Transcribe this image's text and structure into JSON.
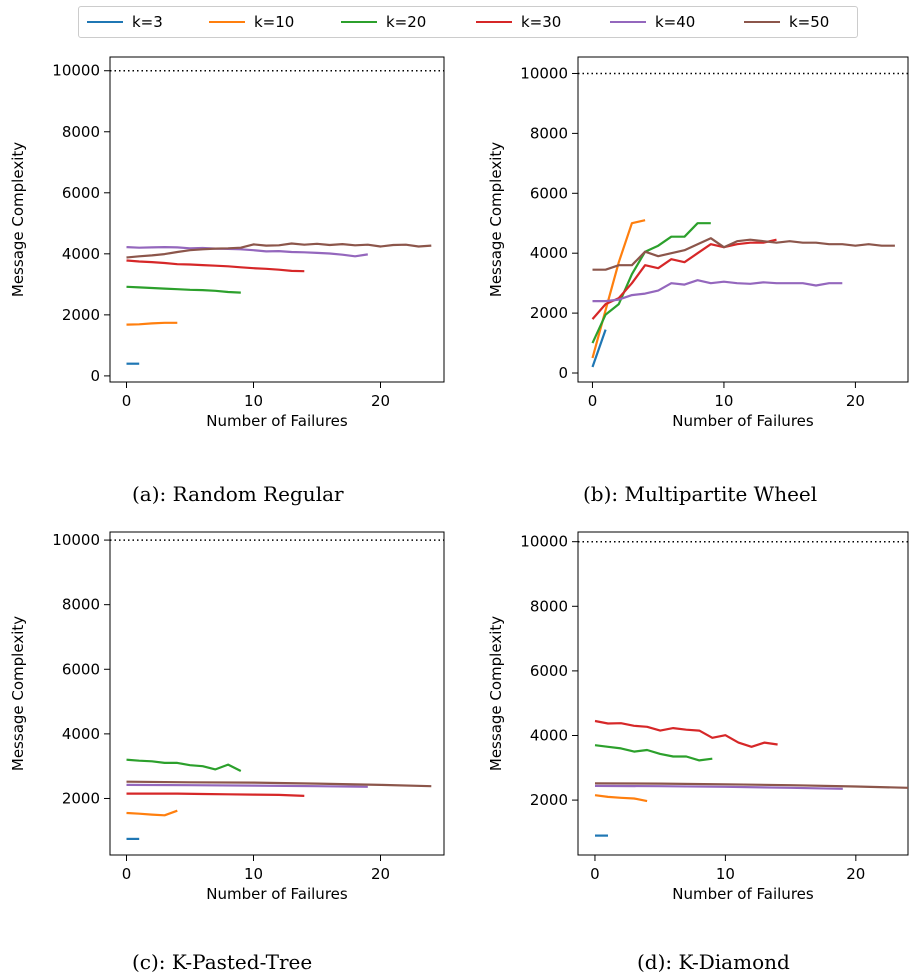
{
  "legend": {
    "placement": "top-center",
    "items": [
      {
        "label": "k=3",
        "color": "#1f77b4"
      },
      {
        "label": "k=10",
        "color": "#ff7f0e"
      },
      {
        "label": "k=20",
        "color": "#2ca02c"
      },
      {
        "label": "k=30",
        "color": "#d62728"
      },
      {
        "label": "k=40",
        "color": "#9467bd"
      },
      {
        "label": "k=50",
        "color": "#8c564b"
      }
    ]
  },
  "chart_data": [
    {
      "type": "line",
      "caption": "(a): Random Regular",
      "xlabel": "Number of Failures",
      "ylabel": "Message Complexity",
      "xlim": [
        -1.3,
        25.0
      ],
      "ylim": [
        -200,
        10450
      ],
      "xticks": [
        0,
        10,
        20
      ],
      "yticks": [
        0,
        2000,
        4000,
        6000,
        8000,
        10000
      ],
      "grid": false,
      "reference_line": {
        "y": 10000,
        "style": "dotted",
        "color": "#000000"
      },
      "series": [
        {
          "name": "k=3",
          "color": "#1f77b4",
          "x": [
            0,
            1
          ],
          "y": [
            400,
            400
          ]
        },
        {
          "name": "k=10",
          "color": "#ff7f0e",
          "x": [
            0,
            1,
            2,
            3,
            4
          ],
          "y": [
            1680,
            1690,
            1720,
            1740,
            1740
          ]
        },
        {
          "name": "k=20",
          "color": "#2ca02c",
          "x": [
            0,
            1,
            2,
            3,
            4,
            5,
            6,
            7,
            8,
            9
          ],
          "y": [
            2920,
            2900,
            2880,
            2860,
            2840,
            2820,
            2810,
            2790,
            2750,
            2730
          ]
        },
        {
          "name": "k=30",
          "color": "#d62728",
          "x": [
            0,
            1,
            2,
            3,
            4,
            5,
            6,
            7,
            8,
            9,
            10,
            11,
            12,
            13,
            14
          ],
          "y": [
            3780,
            3750,
            3730,
            3700,
            3660,
            3650,
            3630,
            3610,
            3590,
            3560,
            3530,
            3510,
            3480,
            3440,
            3430
          ]
        },
        {
          "name": "k=40",
          "color": "#9467bd",
          "x": [
            0,
            1,
            2,
            3,
            4,
            5,
            6,
            7,
            8,
            9,
            10,
            11,
            12,
            13,
            14,
            15,
            16,
            17,
            18,
            19
          ],
          "y": [
            4220,
            4200,
            4210,
            4220,
            4210,
            4180,
            4190,
            4170,
            4160,
            4150,
            4120,
            4080,
            4090,
            4060,
            4050,
            4030,
            4010,
            3970,
            3920,
            3980
          ]
        },
        {
          "name": "k=50",
          "color": "#8c564b",
          "x": [
            0,
            1,
            2,
            3,
            4,
            5,
            6,
            7,
            8,
            9,
            10,
            11,
            12,
            13,
            14,
            15,
            16,
            17,
            18,
            19,
            20,
            21,
            22,
            23,
            24
          ],
          "y": [
            3880,
            3920,
            3950,
            3990,
            4060,
            4120,
            4150,
            4170,
            4180,
            4200,
            4310,
            4270,
            4280,
            4340,
            4300,
            4330,
            4290,
            4320,
            4280,
            4300,
            4240,
            4290,
            4300,
            4240,
            4270
          ]
        }
      ]
    },
    {
      "type": "line",
      "caption": "(b): Multipartite Wheel",
      "xlabel": "Number of Failures",
      "ylabel": "Message Complexity",
      "xlim": [
        -1.1,
        24.0
      ],
      "ylim": [
        -300,
        10550
      ],
      "xticks": [
        0,
        10,
        20
      ],
      "yticks": [
        0,
        2000,
        4000,
        6000,
        8000,
        10000
      ],
      "grid": false,
      "reference_line": {
        "y": 10000,
        "style": "dotted",
        "color": "#000000"
      },
      "series": [
        {
          "name": "k=3",
          "color": "#1f77b4",
          "x": [
            0,
            1
          ],
          "y": [
            200,
            1450
          ]
        },
        {
          "name": "k=10",
          "color": "#ff7f0e",
          "x": [
            0,
            1,
            2,
            3,
            4
          ],
          "y": [
            500,
            2100,
            3700,
            5000,
            5100
          ]
        },
        {
          "name": "k=20",
          "color": "#2ca02c",
          "x": [
            0,
            1,
            2,
            3,
            4,
            5,
            6,
            7,
            8,
            9
          ],
          "y": [
            1000,
            1950,
            2300,
            3300,
            4050,
            4250,
            4550,
            4550,
            5000,
            5000
          ]
        },
        {
          "name": "k=30",
          "color": "#d62728",
          "x": [
            0,
            1,
            2,
            3,
            4,
            5,
            6,
            7,
            8,
            9,
            10,
            11,
            12,
            13,
            14
          ],
          "y": [
            1800,
            2300,
            2500,
            3000,
            3600,
            3500,
            3800,
            3700,
            4000,
            4300,
            4200,
            4300,
            4350,
            4350,
            4450
          ]
        },
        {
          "name": "k=40",
          "color": "#9467bd",
          "x": [
            0,
            1,
            2,
            3,
            4,
            5,
            6,
            7,
            8,
            9,
            10,
            11,
            12,
            13,
            14,
            15,
            16,
            17,
            18,
            19
          ],
          "y": [
            2400,
            2400,
            2450,
            2600,
            2650,
            2750,
            3000,
            2950,
            3100,
            3000,
            3050,
            3000,
            2980,
            3030,
            3000,
            3000,
            3000,
            2920,
            3000,
            3000
          ]
        },
        {
          "name": "k=50",
          "color": "#8c564b",
          "x": [
            0,
            1,
            2,
            3,
            4,
            5,
            6,
            7,
            8,
            9,
            10,
            11,
            12,
            13,
            14,
            15,
            16,
            17,
            18,
            19,
            20,
            21,
            22,
            23
          ],
          "y": [
            3450,
            3450,
            3600,
            3600,
            4050,
            3900,
            4000,
            4100,
            4300,
            4500,
            4200,
            4400,
            4450,
            4400,
            4350,
            4400,
            4350,
            4350,
            4300,
            4300,
            4250,
            4300,
            4250,
            4250
          ]
        }
      ]
    },
    {
      "type": "line",
      "caption": "(c): K-Pasted-Tree",
      "xlabel": "Number of Failures",
      "ylabel": "Message Complexity",
      "xlim": [
        -1.3,
        25.0
      ],
      "ylim": [
        250,
        10250
      ],
      "xticks": [
        0,
        10,
        20
      ],
      "yticks": [
        2000,
        4000,
        6000,
        8000,
        10000
      ],
      "grid": false,
      "reference_line": {
        "y": 10000,
        "style": "dotted",
        "color": "#000000"
      },
      "series": [
        {
          "name": "k=3",
          "color": "#1f77b4",
          "x": [
            0,
            1
          ],
          "y": [
            750,
            750
          ]
        },
        {
          "name": "k=10",
          "color": "#ff7f0e",
          "x": [
            0,
            1,
            2,
            3,
            4
          ],
          "y": [
            1550,
            1530,
            1500,
            1480,
            1620
          ]
        },
        {
          "name": "k=20",
          "color": "#2ca02c",
          "x": [
            0,
            1,
            2,
            3,
            4,
            5,
            6,
            7,
            8,
            9
          ],
          "y": [
            3200,
            3170,
            3150,
            3100,
            3100,
            3030,
            3000,
            2900,
            3050,
            2850
          ]
        },
        {
          "name": "k=30",
          "color": "#d62728",
          "x": [
            0,
            2,
            4,
            6,
            8,
            10,
            12,
            14
          ],
          "y": [
            2150,
            2150,
            2150,
            2140,
            2130,
            2120,
            2110,
            2080
          ]
        },
        {
          "name": "k=40",
          "color": "#9467bd",
          "x": [
            0,
            5,
            10,
            15,
            19
          ],
          "y": [
            2420,
            2410,
            2400,
            2380,
            2360
          ]
        },
        {
          "name": "k=50",
          "color": "#8c564b",
          "x": [
            0,
            5,
            10,
            15,
            20,
            24
          ],
          "y": [
            2520,
            2500,
            2490,
            2460,
            2420,
            2380
          ]
        }
      ]
    },
    {
      "type": "line",
      "caption": "(d): K-Diamond",
      "xlabel": "Number of Failures",
      "ylabel": "Message Complexity",
      "xlim": [
        -1.3,
        24.0
      ],
      "ylim": [
        300,
        10300
      ],
      "xticks": [
        0,
        10,
        20
      ],
      "yticks": [
        2000,
        4000,
        6000,
        8000,
        10000
      ],
      "grid": false,
      "reference_line": {
        "y": 10000,
        "style": "dotted",
        "color": "#000000"
      },
      "series": [
        {
          "name": "k=3",
          "color": "#1f77b4",
          "x": [
            0,
            1
          ],
          "y": [
            900,
            900
          ]
        },
        {
          "name": "k=10",
          "color": "#ff7f0e",
          "x": [
            0,
            1,
            2,
            3,
            4
          ],
          "y": [
            2150,
            2100,
            2070,
            2050,
            1970
          ]
        },
        {
          "name": "k=20",
          "color": "#2ca02c",
          "x": [
            0,
            1,
            2,
            3,
            4,
            5,
            6,
            7,
            8,
            9
          ],
          "y": [
            3700,
            3650,
            3600,
            3500,
            3550,
            3430,
            3350,
            3350,
            3230,
            3280
          ]
        },
        {
          "name": "k=30",
          "color": "#d62728",
          "x": [
            0,
            1,
            2,
            3,
            4,
            5,
            6,
            7,
            8,
            9,
            10,
            11,
            12,
            13,
            14
          ],
          "y": [
            4450,
            4370,
            4380,
            4300,
            4270,
            4150,
            4230,
            4180,
            4150,
            3930,
            4010,
            3780,
            3650,
            3780,
            3720
          ]
        },
        {
          "name": "k=40",
          "color": "#9467bd",
          "x": [
            0,
            5,
            10,
            15,
            19
          ],
          "y": [
            2440,
            2430,
            2410,
            2380,
            2350
          ]
        },
        {
          "name": "k=50",
          "color": "#8c564b",
          "x": [
            0,
            5,
            10,
            15,
            20,
            24
          ],
          "y": [
            2520,
            2510,
            2490,
            2460,
            2420,
            2380
          ]
        }
      ]
    }
  ]
}
